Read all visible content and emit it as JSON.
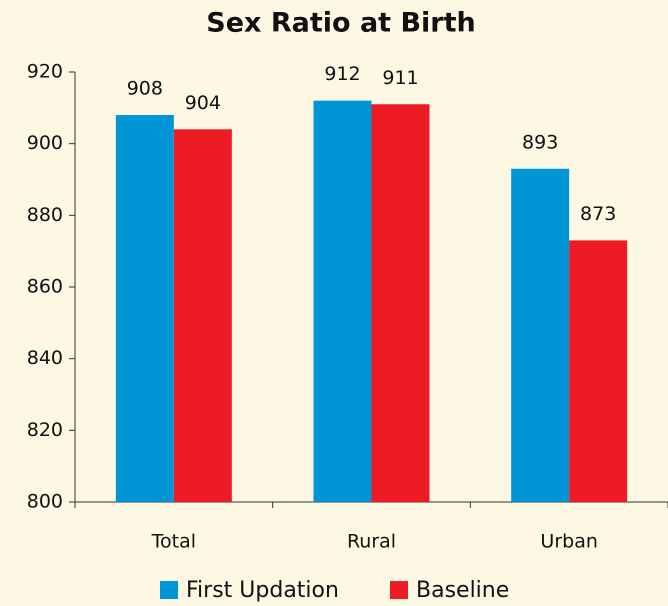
{
  "chart_data": {
    "type": "bar",
    "title": "Sex Ratio at Birth",
    "categories": [
      "Total",
      "Rural",
      "Urban"
    ],
    "series": [
      {
        "name": "First Updation",
        "color": "#0096d6",
        "values": [
          908,
          912,
          893
        ]
      },
      {
        "name": "Baseline",
        "color": "#ed1c24",
        "values": [
          904,
          911,
          873
        ]
      }
    ],
    "ylim": [
      800,
      920
    ],
    "yticks": [
      800,
      820,
      840,
      860,
      880,
      900,
      920
    ],
    "legend": "bottom",
    "grid": false
  }
}
